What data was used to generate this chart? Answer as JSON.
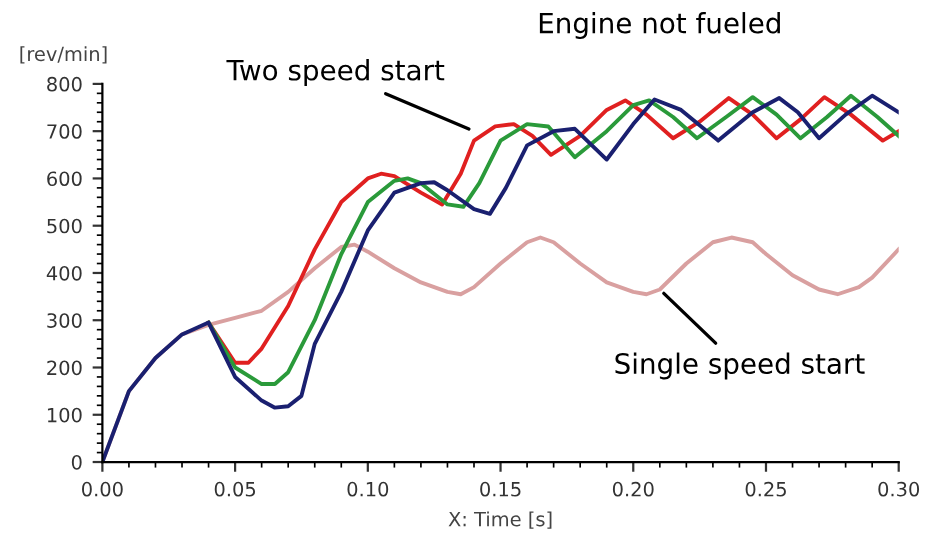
{
  "chart_data": {
    "type": "line",
    "xlabel": "X: Time [s]",
    "ylabel": "[rev/min]",
    "xlim": [
      0,
      0.3
    ],
    "ylim": [
      0,
      800
    ],
    "xticks": [
      {
        "value": 0,
        "label": "0.00"
      },
      {
        "value": 0.05,
        "label": "0.05"
      },
      {
        "value": 0.1,
        "label": "0.10"
      },
      {
        "value": 0.15,
        "label": "0.15"
      },
      {
        "value": 0.2,
        "label": "0.20"
      },
      {
        "value": 0.25,
        "label": "0.25"
      },
      {
        "value": 0.3,
        "label": "0.30"
      }
    ],
    "yticks": [
      0,
      100,
      200,
      300,
      400,
      500,
      600,
      700,
      800
    ],
    "grid": false,
    "legend": false,
    "marker": "none",
    "line_style": "solid",
    "annotations": [
      "Engine not fueled",
      {
        "text": "Two speed start",
        "x": 0.14,
        "y": 700
      },
      {
        "text": "Single speed start",
        "x": 0.21,
        "y": 365
      }
    ],
    "series": [
      {
        "color": "#d9a0a0",
        "x": [
          0,
          0.01,
          0.02,
          0.03,
          0.04,
          0.05,
          0.06,
          0.07,
          0.08,
          0.09,
          0.095,
          0.1,
          0.11,
          0.12,
          0.13,
          0.135,
          0.14,
          0.15,
          0.16,
          0.165,
          0.17,
          0.18,
          0.19,
          0.2,
          0.205,
          0.21,
          0.22,
          0.23,
          0.237,
          0.245,
          0.25,
          0.26,
          0.27,
          0.277,
          0.285,
          0.29,
          0.3
        ],
        "values": [
          0,
          150,
          220,
          270,
          290,
          305,
          320,
          360,
          410,
          455,
          460,
          445,
          410,
          380,
          360,
          355,
          370,
          420,
          465,
          475,
          465,
          420,
          380,
          360,
          355,
          365,
          420,
          465,
          475,
          465,
          440,
          395,
          365,
          355,
          370,
          390,
          450
        ]
      },
      {
        "color": "#e02020",
        "x": [
          0.04,
          0.05,
          0.055,
          0.06,
          0.07,
          0.08,
          0.09,
          0.1,
          0.105,
          0.11,
          0.12,
          0.128,
          0.135,
          0.14,
          0.148,
          0.155,
          0.162,
          0.169,
          0.18,
          0.19,
          0.197,
          0.205,
          0.215,
          0.225,
          0.236,
          0.245,
          0.254,
          0.263,
          0.272,
          0.282,
          0.294,
          0.3
        ],
        "values": [
          295,
          210,
          210,
          240,
          330,
          450,
          550,
          600,
          610,
          605,
          570,
          545,
          610,
          680,
          710,
          715,
          690,
          650,
          690,
          745,
          765,
          735,
          685,
          720,
          770,
          735,
          685,
          725,
          772,
          735,
          680,
          700
        ]
      },
      {
        "color": "#2a9a3a",
        "x": [
          0.04,
          0.05,
          0.06,
          0.065,
          0.07,
          0.08,
          0.09,
          0.1,
          0.11,
          0.115,
          0.12,
          0.13,
          0.136,
          0.142,
          0.15,
          0.16,
          0.168,
          0.178,
          0.19,
          0.2,
          0.206,
          0.215,
          0.224,
          0.235,
          0.245,
          0.254,
          0.263,
          0.273,
          0.282,
          0.292,
          0.3
        ],
        "values": [
          295,
          200,
          165,
          165,
          190,
          300,
          440,
          550,
          595,
          600,
          590,
          545,
          540,
          590,
          680,
          715,
          710,
          645,
          700,
          755,
          765,
          730,
          685,
          730,
          772,
          735,
          685,
          730,
          775,
          730,
          690
        ]
      },
      {
        "color": "#1a2070",
        "x": [
          0,
          0.01,
          0.02,
          0.03,
          0.04,
          0.05,
          0.06,
          0.065,
          0.07,
          0.075,
          0.08,
          0.09,
          0.1,
          0.11,
          0.12,
          0.125,
          0.13,
          0.14,
          0.146,
          0.152,
          0.16,
          0.17,
          0.178,
          0.19,
          0.2,
          0.208,
          0.218,
          0.232,
          0.245,
          0.255,
          0.262,
          0.27,
          0.28,
          0.29,
          0.3
        ],
        "values": [
          0,
          150,
          220,
          270,
          295,
          180,
          130,
          115,
          118,
          140,
          250,
          360,
          490,
          570,
          590,
          592,
          575,
          535,
          525,
          580,
          670,
          700,
          705,
          640,
          715,
          767,
          745,
          680,
          740,
          770,
          740,
          685,
          735,
          775,
          740
        ]
      }
    ]
  }
}
